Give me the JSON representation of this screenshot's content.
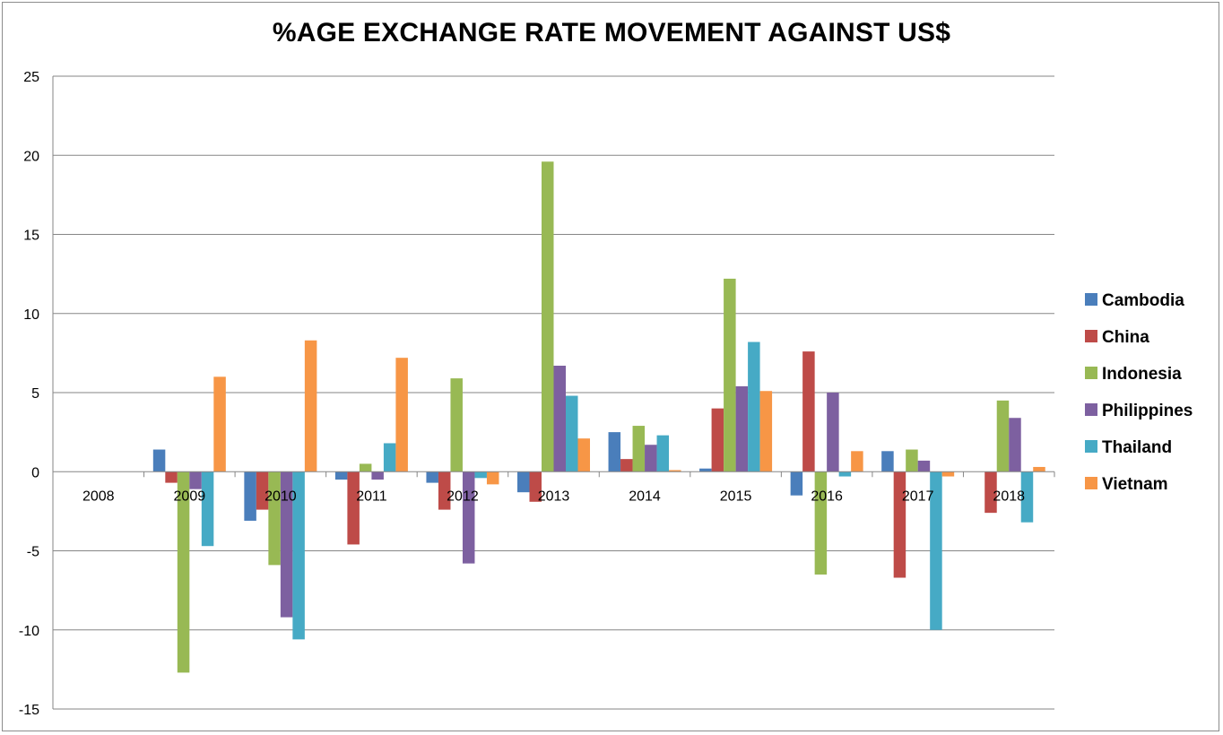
{
  "chart_data": {
    "type": "bar",
    "title": "%AGE EXCHANGE RATE MOVEMENT AGAINST US$",
    "xlabel": "",
    "ylabel": "",
    "ylim": [
      -15,
      25
    ],
    "yticks": [
      25,
      20,
      15,
      10,
      5,
      0,
      -5,
      -10,
      -15
    ],
    "grid": true,
    "legend_position": "right",
    "categories": [
      "2008",
      "2009",
      "2010",
      "2011",
      "2012",
      "2013",
      "2014",
      "2015",
      "2016",
      "2017",
      "2018"
    ],
    "series": [
      {
        "name": "Cambodia",
        "color": "#4a7ebb",
        "values": [
          0,
          1.4,
          -3.1,
          -0.5,
          -0.7,
          -1.3,
          2.5,
          0.2,
          -1.5,
          1.3,
          0
        ]
      },
      {
        "name": "China",
        "color": "#be4b48",
        "values": [
          0,
          -0.7,
          -2.4,
          -4.6,
          -2.4,
          -1.9,
          0.8,
          4.0,
          7.6,
          -6.7,
          -2.6
        ]
      },
      {
        "name": "Indonesia",
        "color": "#98b954",
        "values": [
          0,
          -12.7,
          -5.9,
          0.5,
          5.9,
          19.6,
          2.9,
          12.2,
          -6.5,
          1.4,
          4.5
        ]
      },
      {
        "name": "Philippines",
        "color": "#7d60a0",
        "values": [
          0,
          -1.1,
          -9.2,
          -0.5,
          -5.8,
          6.7,
          1.7,
          5.4,
          5.0,
          0.7,
          3.4
        ]
      },
      {
        "name": "Thailand",
        "color": "#46aac5",
        "values": [
          0,
          -4.7,
          -10.6,
          1.8,
          -0.4,
          4.8,
          2.3,
          8.2,
          -0.3,
          -10.0,
          -3.2
        ]
      },
      {
        "name": "Vietnam",
        "color": "#f79646",
        "values": [
          0,
          6.0,
          8.3,
          7.2,
          -0.8,
          2.1,
          0.1,
          5.1,
          1.3,
          -0.3,
          0.3
        ]
      }
    ]
  }
}
